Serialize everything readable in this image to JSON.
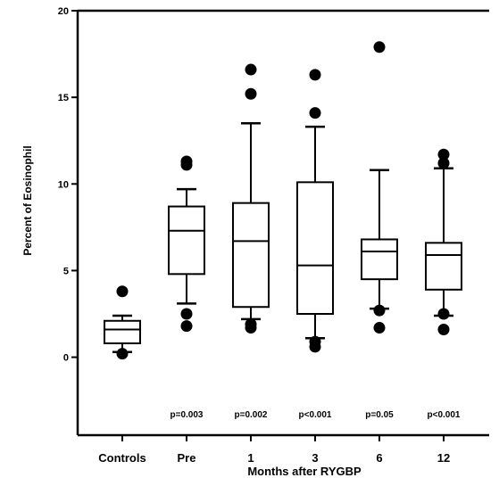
{
  "chart_data": {
    "type": "box",
    "xlabel": "Months after RYGBP",
    "ylabel": "Percent of Eosinophil",
    "ylim": [
      -4.5,
      20
    ],
    "yticks": [
      0,
      5,
      10,
      15,
      20
    ],
    "grid": false,
    "categories": [
      "Controls",
      "Pre",
      "1",
      "3",
      "6",
      "12"
    ],
    "pvalues": [
      "",
      "p=0.003",
      "p=0.002",
      "p<0.001",
      "p=0.05",
      "p<0.001"
    ],
    "boxes": [
      {
        "category": "Controls",
        "whisker_low": 0.3,
        "q1": 0.8,
        "median": 1.6,
        "q3": 2.1,
        "whisker_high": 2.4,
        "outliers": [
          3.8,
          0.2
        ]
      },
      {
        "category": "Pre",
        "whisker_low": 3.1,
        "q1": 4.8,
        "median": 7.3,
        "q3": 8.7,
        "whisker_high": 9.7,
        "outliers": [
          11.3,
          11.1,
          2.5,
          1.8
        ]
      },
      {
        "category": "1",
        "whisker_low": 2.2,
        "q1": 2.9,
        "median": 6.7,
        "q3": 8.9,
        "whisker_high": 13.5,
        "outliers": [
          16.6,
          15.2,
          1.9,
          1.7
        ]
      },
      {
        "category": "3",
        "whisker_low": 1.1,
        "q1": 2.5,
        "median": 5.3,
        "q3": 10.1,
        "whisker_high": 13.3,
        "outliers": [
          16.3,
          14.1,
          0.9,
          0.6
        ]
      },
      {
        "category": "6",
        "whisker_low": 2.8,
        "q1": 4.5,
        "median": 6.1,
        "q3": 6.8,
        "whisker_high": 10.8,
        "outliers": [
          17.9,
          2.7,
          1.7
        ]
      },
      {
        "category": "12",
        "whisker_low": 2.4,
        "q1": 3.9,
        "median": 5.9,
        "q3": 6.6,
        "whisker_high": 10.9,
        "outliers": [
          11.7,
          11.2,
          2.5,
          1.6
        ]
      }
    ]
  }
}
